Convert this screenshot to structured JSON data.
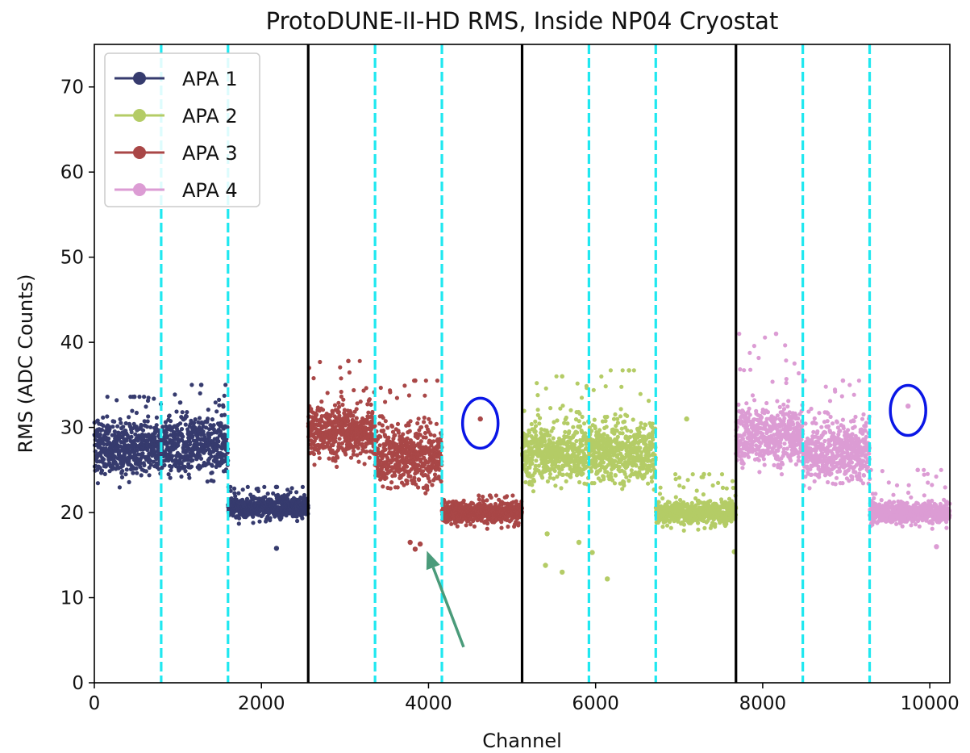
{
  "chart_data": {
    "type": "scatter",
    "title": "ProtoDUNE-II-HD RMS, Inside NP04 Cryostat",
    "xlabel": "Channel",
    "ylabel": "RMS (ADC Counts)",
    "xlim": [
      0,
      10240
    ],
    "ylim": [
      0,
      75
    ],
    "x_ticks": [
      0,
      2000,
      4000,
      6000,
      8000,
      10000
    ],
    "y_ticks": [
      0,
      10,
      20,
      30,
      40,
      50,
      60,
      70
    ],
    "grid": false,
    "legend_position": "upper-left",
    "series": [
      {
        "name": "APA 1",
        "color": "#363b6e",
        "x_range": [
          0,
          2560
        ],
        "segments": [
          {
            "x_start": 0,
            "x_end": 800,
            "y_level": 27.5,
            "y_spread": 2.2,
            "y_max": 33.6
          },
          {
            "x_start": 800,
            "x_end": 1600,
            "y_level": 28.0,
            "y_spread": 2.4,
            "y_max": 35.0
          },
          {
            "x_start": 1600,
            "x_end": 2560,
            "y_level": 20.6,
            "y_spread": 0.9,
            "y_max": 23.0
          }
        ],
        "outliers": [
          [
            2180,
            15.8
          ]
        ]
      },
      {
        "name": "APA 2",
        "color": "#b4cc66",
        "x_range": [
          5120,
          7680
        ],
        "segments": [
          {
            "x_start": 5120,
            "x_end": 5920,
            "y_level": 27.0,
            "y_spread": 2.4,
            "y_max": 36.0
          },
          {
            "x_start": 5920,
            "x_end": 6720,
            "y_level": 27.0,
            "y_spread": 2.4,
            "y_max": 36.7
          },
          {
            "x_start": 6720,
            "x_end": 7680,
            "y_level": 20.0,
            "y_spread": 1.0,
            "y_max": 24.5
          }
        ],
        "outliers": [
          [
            5400,
            13.8
          ],
          [
            5420,
            17.5
          ],
          [
            5600,
            13.0
          ],
          [
            5800,
            16.5
          ],
          [
            5960,
            15.3
          ],
          [
            6140,
            12.2
          ],
          [
            7090,
            31.0
          ],
          [
            7660,
            15.4
          ]
        ]
      },
      {
        "name": "APA 3",
        "color": "#a94747",
        "x_range": [
          2560,
          5120
        ],
        "segments": [
          {
            "x_start": 2560,
            "x_end": 3360,
            "y_level": 29.5,
            "y_spread": 2.2,
            "y_max": 37.8
          },
          {
            "x_start": 3360,
            "x_end": 4160,
            "y_level": 26.5,
            "y_spread": 2.4,
            "y_max": 35.5
          },
          {
            "x_start": 4160,
            "x_end": 5120,
            "y_level": 20.0,
            "y_spread": 0.9,
            "y_max": 22.0
          }
        ],
        "outliers": [
          [
            3780,
            16.5
          ],
          [
            3840,
            15.7
          ],
          [
            3900,
            16.3
          ],
          [
            4620,
            31.0
          ]
        ]
      },
      {
        "name": "APA 4",
        "color": "#dc9cd4",
        "x_range": [
          7680,
          10240
        ],
        "segments": [
          {
            "x_start": 7680,
            "x_end": 8480,
            "y_level": 29.0,
            "y_spread": 2.4,
            "y_max": 41.0
          },
          {
            "x_start": 8480,
            "x_end": 9280,
            "y_level": 27.0,
            "y_spread": 2.4,
            "y_max": 35.5
          },
          {
            "x_start": 9280,
            "x_end": 10240,
            "y_level": 20.0,
            "y_spread": 0.9,
            "y_max": 25.0
          }
        ],
        "outliers": [
          [
            9740,
            32.5
          ],
          [
            10080,
            16.0
          ]
        ]
      }
    ],
    "apa_boundaries": [
      2560,
      5120,
      7680
    ],
    "plane_boundaries": [
      800,
      1600,
      3360,
      4160,
      5920,
      6720,
      8480,
      9280
    ],
    "highlight_circles": [
      {
        "x": 4620,
        "y": 30.5,
        "color": "#0a16e6"
      },
      {
        "x": 9740,
        "y": 32.0,
        "color": "#0a16e6"
      }
    ],
    "arrow": {
      "from": [
        4420,
        4.2
      ],
      "to": [
        3980,
        15.5
      ],
      "color": "#4a9b7a"
    },
    "boundary_colors": {
      "apa": "#000000",
      "plane": "#1fe8f0"
    }
  }
}
